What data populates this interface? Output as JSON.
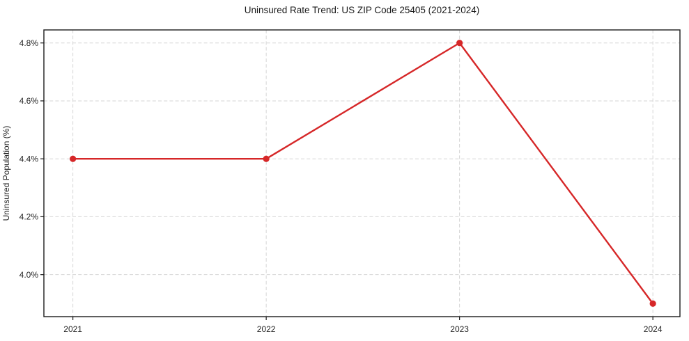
{
  "chart_data": {
    "type": "line",
    "title": "Uninsured Rate Trend: US ZIP Code 25405 (2021-2024)",
    "xlabel": "",
    "ylabel": "Uninsured Population (%)",
    "x": [
      2021,
      2022,
      2023,
      2024
    ],
    "values": [
      4.4,
      4.4,
      4.8,
      3.9
    ],
    "xticks": [
      2021,
      2022,
      2023,
      2024
    ],
    "xtick_labels": [
      "2021",
      "2022",
      "2023",
      "2024"
    ],
    "yticks": [
      4.0,
      4.2,
      4.4,
      4.6,
      4.8
    ],
    "ytick_labels": [
      "4.0%",
      "4.2%",
      "4.4%",
      "4.6%",
      "4.8%"
    ],
    "xlim": [
      2020.85,
      2024.14
    ],
    "ylim": [
      3.855,
      4.845
    ],
    "grid": true,
    "grid_style": "dashed",
    "legend": false,
    "colors": {
      "line": "#d62728",
      "marker": "#d62728",
      "grid": "#d5d5d5",
      "axis": "#1a1a1a",
      "text": "#262626"
    }
  }
}
